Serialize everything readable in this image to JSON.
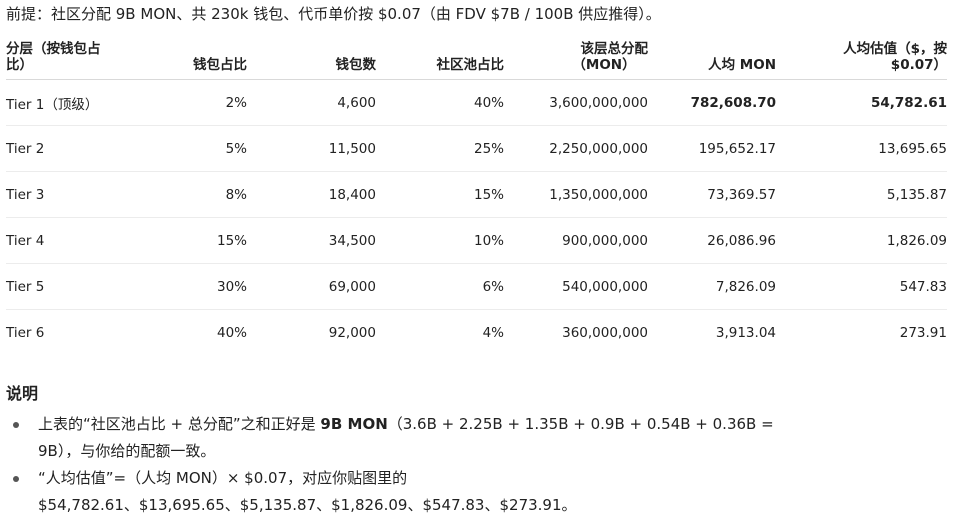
{
  "premise": "前提：社区分配 9B MON、共 230k 钱包、代币单价按 $0.07（由 FDV $7B / 100B 供应推得）。",
  "table": {
    "headers": {
      "tier_line1": "分层（按钱包占",
      "tier_line2": "比）",
      "wallet_pct": "钱包占比",
      "wallet_count": "钱包数",
      "pool_pct": "社区池占比",
      "total_line1": "该层总分配",
      "total_line2": "（MON）",
      "per_capita": "人均 MON",
      "valuation_line1": "人均估值（$，按",
      "valuation_line2": "$0.07）"
    },
    "rows": [
      {
        "tier": "Tier 1（顶级）",
        "wallet_pct": "2%",
        "wallet_count": "4,600",
        "pool_pct": "40%",
        "total": "3,600,000,000",
        "per_capita": "782,608.70",
        "valuation": "54,782.61"
      },
      {
        "tier": "Tier 2",
        "wallet_pct": "5%",
        "wallet_count": "11,500",
        "pool_pct": "25%",
        "total": "2,250,000,000",
        "per_capita": "195,652.17",
        "valuation": "13,695.65"
      },
      {
        "tier": "Tier 3",
        "wallet_pct": "8%",
        "wallet_count": "18,400",
        "pool_pct": "15%",
        "total": "1,350,000,000",
        "per_capita": "73,369.57",
        "valuation": "5,135.87"
      },
      {
        "tier": "Tier 4",
        "wallet_pct": "15%",
        "wallet_count": "34,500",
        "pool_pct": "10%",
        "total": "900,000,000",
        "per_capita": "26,086.96",
        "valuation": "1,826.09"
      },
      {
        "tier": "Tier 5",
        "wallet_pct": "30%",
        "wallet_count": "69,000",
        "pool_pct": "6%",
        "total": "540,000,000",
        "per_capita": "7,826.09",
        "valuation": "547.83"
      },
      {
        "tier": "Tier 6",
        "wallet_pct": "40%",
        "wallet_count": "92,000",
        "pool_pct": "4%",
        "total": "360,000,000",
        "per_capita": "3,913.04",
        "valuation": "273.91"
      }
    ]
  },
  "notes": {
    "title": "说明",
    "item1": {
      "prefix": "上表的“社区池占比 + 总分配”之和正好是 ",
      "bold": "9B MON",
      "suffix": "（3.6B + 2.25B + 1.35B + 0.9B + 0.54B + 0.36B =",
      "line2": "9B），与你给的配额一致。"
    },
    "item2": {
      "line1": "“人均估值”=（人均 MON）× $0.07，对应你贴图里的",
      "line2": "$54,782.61、$13,695.65、$5,135.87、$1,826.09、$547.83、$273.91。"
    }
  }
}
